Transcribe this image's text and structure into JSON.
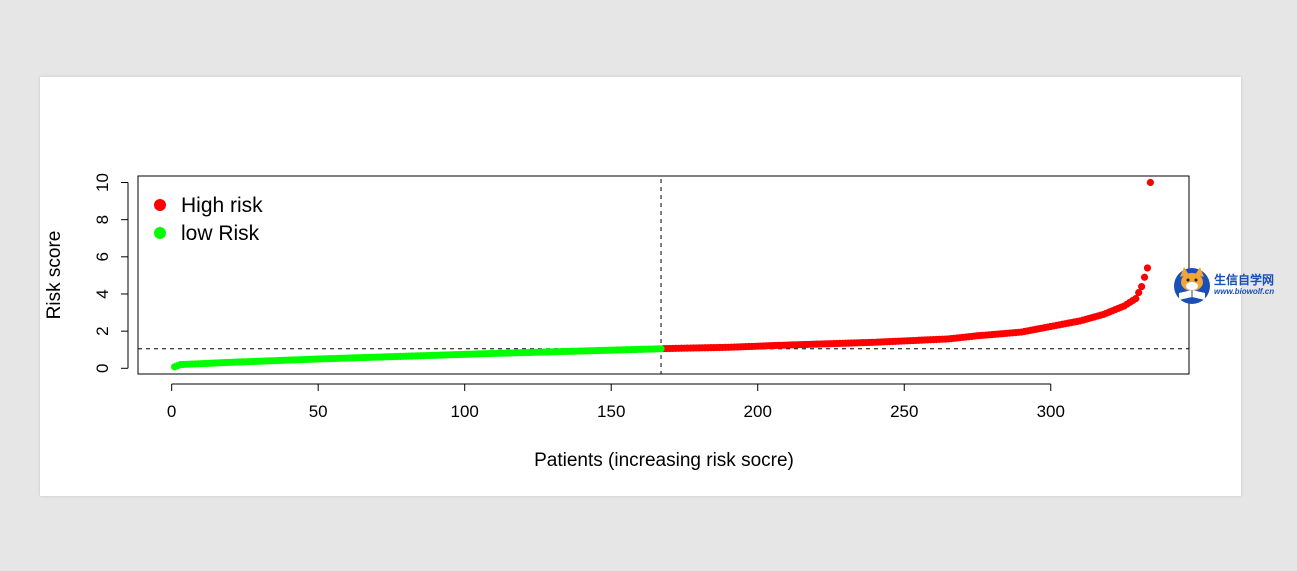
{
  "chart_data": {
    "type": "scatter",
    "xlabel": "Patients (increasing risk socre)",
    "ylabel": "Risk score",
    "xlim": [
      1,
      334
    ],
    "ylim": [
      0,
      10
    ],
    "x_ticks": [
      0,
      50,
      100,
      150,
      200,
      250,
      300
    ],
    "y_ticks": [
      0,
      2,
      4,
      6,
      8,
      10
    ],
    "cutoff_x": 167,
    "cutoff_y": 1.05,
    "legend_position": "top-left",
    "grid": false,
    "series": [
      {
        "name": "High risk",
        "color": "#ff0000",
        "x_range": [
          168,
          334
        ],
        "anchors": [
          [
            168,
            1.06
          ],
          [
            190,
            1.13
          ],
          [
            210,
            1.25
          ],
          [
            240,
            1.4
          ],
          [
            265,
            1.58
          ],
          [
            275,
            1.75
          ],
          [
            290,
            1.95
          ],
          [
            300,
            2.25
          ],
          [
            310,
            2.55
          ],
          [
            318,
            2.9
          ],
          [
            325,
            3.35
          ],
          [
            329,
            3.75
          ],
          [
            331,
            4.4
          ],
          [
            333,
            5.4
          ],
          [
            334,
            10.0
          ]
        ]
      },
      {
        "name": "low Risk",
        "color": "#00ff00",
        "x_range": [
          1,
          167
        ],
        "anchors": [
          [
            1,
            0.08
          ],
          [
            3,
            0.2
          ],
          [
            20,
            0.32
          ],
          [
            50,
            0.5
          ],
          [
            80,
            0.65
          ],
          [
            110,
            0.8
          ],
          [
            140,
            0.93
          ],
          [
            167,
            1.05
          ]
        ]
      }
    ]
  },
  "watermark": {
    "title": "生信自学网",
    "url": "www.biowolf.cn",
    "icon": "fox-book-logo"
  }
}
